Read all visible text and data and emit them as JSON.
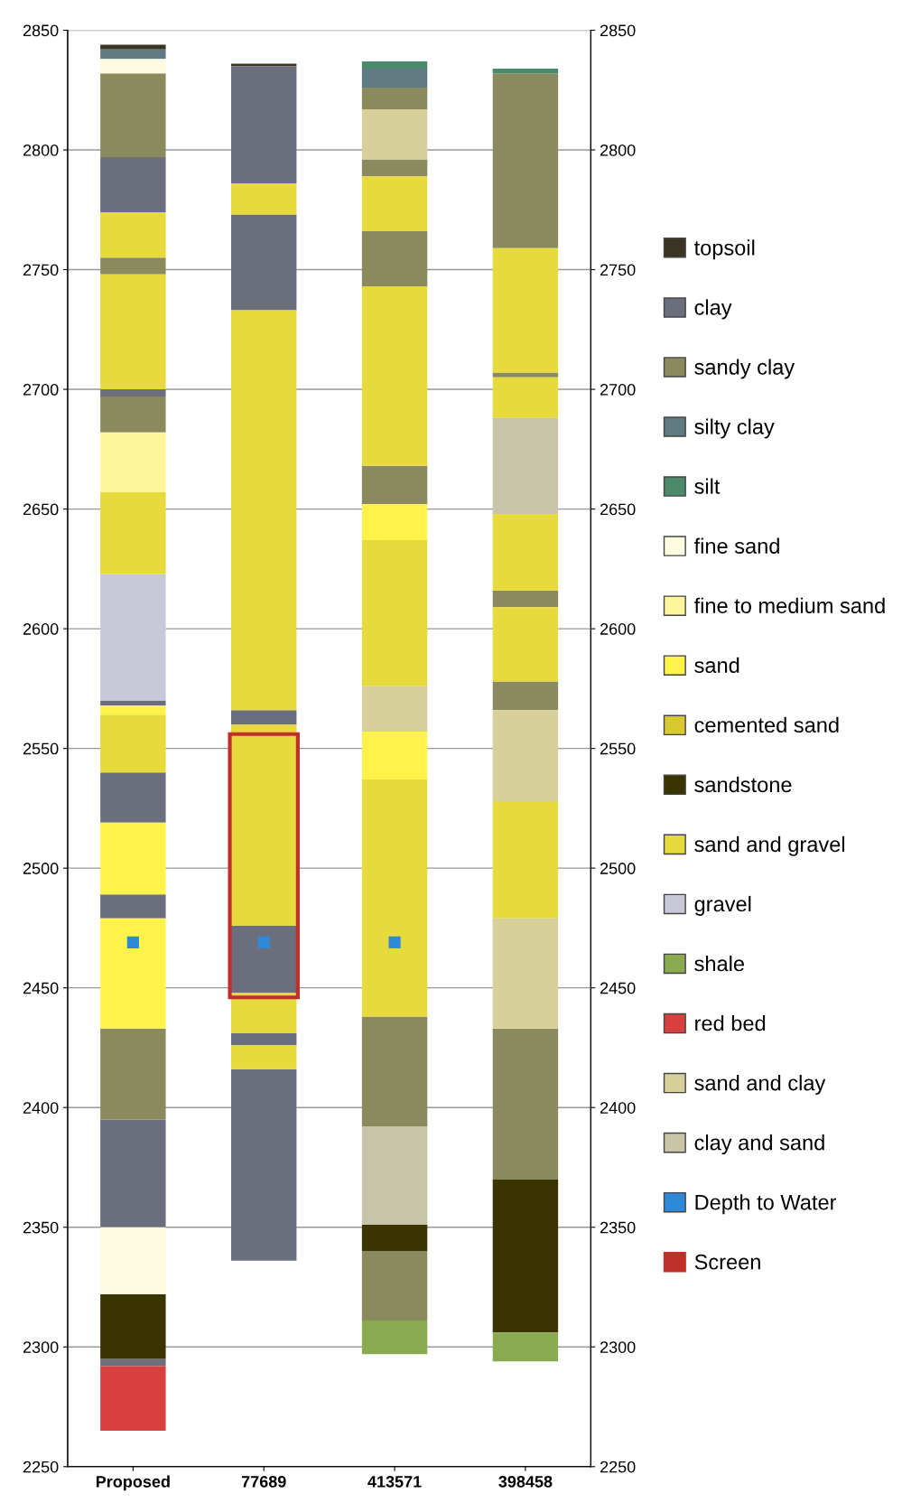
{
  "chart_data": {
    "type": "bar",
    "categories": [
      "Proposed",
      "77689",
      "413571",
      "398458"
    ],
    "ylim": [
      2250,
      2850
    ],
    "yticks": [
      2250,
      2300,
      2350,
      2400,
      2450,
      2500,
      2550,
      2600,
      2650,
      2700,
      2750,
      2800,
      2850
    ],
    "y2lim": [
      2250,
      2850
    ],
    "y2ticks": [
      2250,
      2300,
      2350,
      2400,
      2450,
      2500,
      2550,
      2600,
      2650,
      2700,
      2750,
      2800,
      2850
    ],
    "grid": "y",
    "legend": "right",
    "series": [
      {
        "name": "topsoil",
        "color": "#3a3422",
        "x": [
          "Proposed",
          "77689"
        ],
        "base": [
          2842,
          2835
        ],
        "values": [
          2,
          1
        ]
      },
      {
        "name": "clay",
        "color": "#6b6e7c",
        "x": [
          "Proposed",
          "Proposed",
          "Proposed",
          "Proposed",
          "Proposed",
          "Proposed",
          "Proposed",
          "77689",
          "77689",
          "77689",
          "77689",
          "77689",
          "77689"
        ],
        "base": [
          2774,
          2697,
          2568,
          2519,
          2479,
          2350,
          2292,
          2786,
          2733,
          2560,
          2448,
          2426,
          2336
        ],
        "values": [
          23,
          3,
          2,
          21,
          10,
          45,
          3,
          49,
          40,
          6,
          28,
          5,
          80
        ]
      },
      {
        "name": "sandy clay",
        "color": "#8a8a5e",
        "x": [
          "Proposed",
          "Proposed",
          "Proposed",
          "Proposed",
          "413571",
          "413571",
          "413571",
          "413571",
          "413571",
          "413571",
          "398458",
          "398458",
          "398458",
          "398458",
          "398458"
        ],
        "base": [
          2797,
          2748,
          2682,
          2395,
          2817,
          2789,
          2743,
          2652,
          2392,
          2311,
          2759,
          2705,
          2609,
          2566,
          2370
        ],
        "values": [
          35,
          7,
          15,
          38,
          9,
          7,
          23,
          16,
          46,
          29,
          73,
          2,
          7,
          12,
          63
        ]
      },
      {
        "name": "silty clay",
        "color": "#5f7a80",
        "x": [
          "Proposed",
          "413571"
        ],
        "base": [
          2838,
          2826
        ],
        "values": [
          4,
          8
        ]
      },
      {
        "name": "silt",
        "color": "#4a8a6a",
        "x": [
          "413571",
          "398458"
        ],
        "base": [
          2834,
          2832
        ],
        "values": [
          3,
          2
        ]
      },
      {
        "name": "fine sand",
        "color": "#fdfbe0",
        "x": [
          "Proposed",
          "Proposed"
        ],
        "base": [
          2832,
          2322
        ],
        "values": [
          6,
          28
        ]
      },
      {
        "name": "fine to medium sand",
        "color": "#fff59a",
        "x": [
          "Proposed"
        ],
        "base": [
          2657
        ],
        "values": [
          25
        ]
      },
      {
        "name": "sand",
        "color": "#fff34a",
        "x": [
          "Proposed",
          "Proposed",
          "Proposed",
          "413571",
          "413571"
        ],
        "base": [
          2564,
          2489,
          2433,
          2637,
          2537
        ],
        "values": [
          4,
          30,
          46,
          15,
          20
        ]
      },
      {
        "name": "cemented sand",
        "color": "#d8c830",
        "values": [
          null,
          null,
          null,
          null
        ]
      },
      {
        "name": "sandstone",
        "color": "#3a3400",
        "x": [
          "Proposed",
          "413571",
          "398458"
        ],
        "base": [
          2295,
          2340,
          2306
        ],
        "values": [
          27,
          11,
          64
        ]
      },
      {
        "name": "sand and gravel",
        "color": "#e6da3c",
        "x": [
          "Proposed",
          "Proposed",
          "Proposed",
          "Proposed",
          "77689",
          "77689",
          "77689",
          "77689",
          "77689",
          "413571",
          "413571",
          "413571",
          "413571",
          "398458",
          "398458",
          "398458",
          "398458",
          "398458"
        ],
        "base": [
          2755,
          2700,
          2623,
          2540,
          2773,
          2566,
          2476,
          2431,
          2416,
          2766,
          2668,
          2576,
          2438,
          2707,
          2616,
          2578,
          2479,
          2688
        ],
        "values": [
          19,
          48,
          34,
          24,
          13,
          167,
          84,
          17,
          10,
          23,
          75,
          61,
          99,
          52,
          32,
          31,
          49,
          17
        ]
      },
      {
        "name": "gravel",
        "color": "#c8c8d8",
        "x": [
          "Proposed"
        ],
        "base": [
          2570
        ],
        "values": [
          53
        ]
      },
      {
        "name": "shale",
        "color": "#8aaa50",
        "x": [
          "413571",
          "398458"
        ],
        "base": [
          2297,
          2294
        ],
        "values": [
          14,
          12
        ]
      },
      {
        "name": "red bed",
        "color": "#d84040",
        "x": [
          "Proposed"
        ],
        "base": [
          2265
        ],
        "values": [
          27
        ]
      },
      {
        "name": "sand and clay",
        "color": "#d8d09a",
        "x": [
          "413571",
          "413571",
          "398458",
          "398458"
        ],
        "base": [
          2796,
          2557,
          2528,
          2433
        ],
        "values": [
          21,
          19,
          38,
          46
        ]
      },
      {
        "name": "clay and sand",
        "color": "#c8c4a8",
        "x": [
          "413571",
          "398458"
        ],
        "base": [
          2351,
          2648
        ],
        "values": [
          41,
          40
        ]
      },
      {
        "name": "Depth to Water",
        "type": "scatter",
        "marker": "square",
        "color": "#2e8ad8",
        "x": [
          "Proposed",
          "77689",
          "413571"
        ],
        "values": [
          2469,
          2469,
          2469
        ]
      },
      {
        "name": "Screen",
        "color": "#c0302a",
        "line_style": "solid",
        "x": [
          "77689"
        ],
        "base": [
          2446
        ],
        "values": [
          110
        ]
      }
    ]
  }
}
